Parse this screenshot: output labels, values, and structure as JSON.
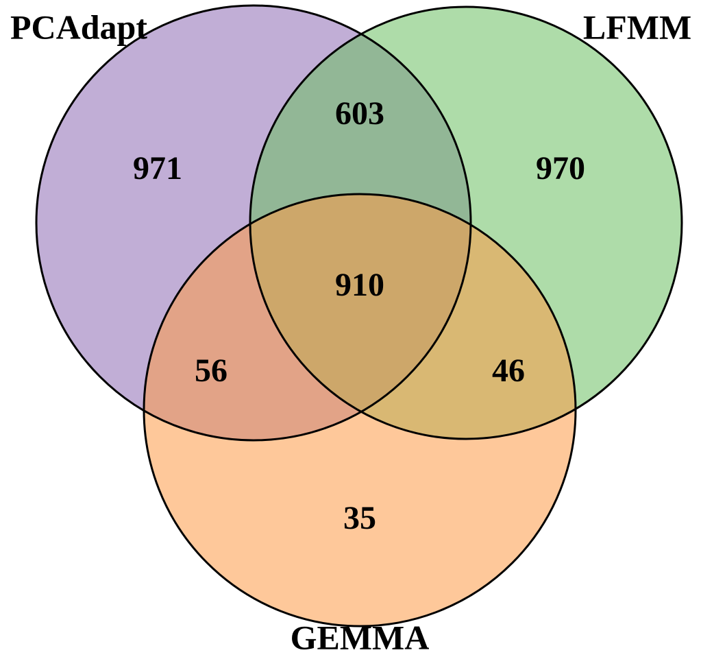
{
  "chart_data": {
    "type": "venn",
    "sets": [
      {
        "name": "PCAdapt",
        "color": "#8e6bb4"
      },
      {
        "name": "LFMM",
        "color": "#6bbf63"
      },
      {
        "name": "GEMMA",
        "color": "#fd9a47"
      }
    ],
    "regions": [
      {
        "sets": [
          0
        ],
        "value": 971
      },
      {
        "sets": [
          1
        ],
        "value": 970
      },
      {
        "sets": [
          2
        ],
        "value": 35
      },
      {
        "sets": [
          0,
          1
        ],
        "value": 603
      },
      {
        "sets": [
          0,
          2
        ],
        "value": 56
      },
      {
        "sets": [
          1,
          2
        ],
        "value": 46
      },
      {
        "sets": [
          0,
          1,
          2
        ],
        "value": 910
      }
    ]
  }
}
